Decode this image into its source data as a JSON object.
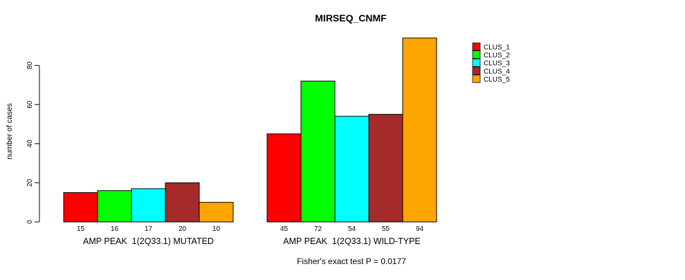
{
  "chart_data": {
    "type": "bar",
    "title": "MIRSEQ_CNMF",
    "ylabel": "number of cases",
    "caption": "Fisher's exact test P = 0.0177",
    "categories": [
      "AMP PEAK  1(2Q33.1) MUTATED",
      "AMP PEAK  1(2Q33.1) WILD-TYPE"
    ],
    "series": [
      {
        "name": "CLUS_1",
        "color": "#FF0000",
        "values": [
          15,
          45
        ]
      },
      {
        "name": "CLUS_2",
        "color": "#00FF00",
        "values": [
          16,
          72
        ]
      },
      {
        "name": "CLUS_3",
        "color": "#00FFFF",
        "values": [
          17,
          54
        ]
      },
      {
        "name": "CLUS_4",
        "color": "#A52A2A",
        "values": [
          20,
          55
        ]
      },
      {
        "name": "CLUS_5",
        "color": "#FFA500",
        "values": [
          10,
          94
        ]
      }
    ],
    "yticks": [
      0,
      20,
      40,
      60,
      80
    ],
    "ylim": [
      0,
      94
    ],
    "grid": false,
    "bar_value_labels": true,
    "legend_position": "top-right",
    "axis_color": "#000000",
    "bar_border_color": "#000000"
  }
}
